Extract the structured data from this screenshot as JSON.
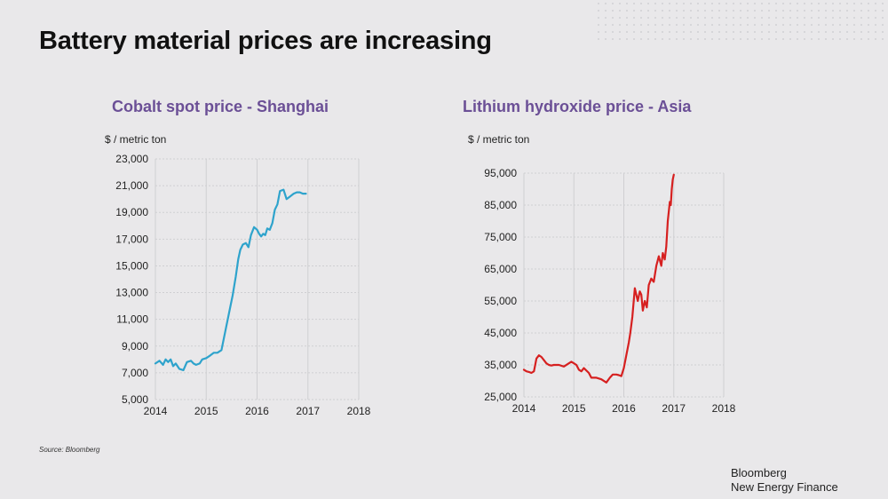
{
  "slide": {
    "title": "Battery material prices are increasing",
    "source": "Source: Bloomberg",
    "brand_line1": "Bloomberg",
    "brand_line2": "New Energy Finance"
  },
  "colors": {
    "cobalt": "#2ea3cc",
    "lithium": "#d62020",
    "title_purple": "#6b4f96"
  },
  "chart_data": [
    {
      "type": "line",
      "title": "Cobalt spot price - Shanghai",
      "ylabel": "$ / metric ton",
      "xlim": [
        2014,
        2018
      ],
      "ylim": [
        5000,
        23000
      ],
      "yticks": [
        5000,
        7000,
        9000,
        11000,
        13000,
        15000,
        17000,
        19000,
        21000,
        23000
      ],
      "xticks": [
        2014,
        2015,
        2016,
        2017,
        2018
      ],
      "grid": true,
      "color": "#2ea3cc",
      "x": [
        2014.0,
        2014.08,
        2014.15,
        2014.2,
        2014.25,
        2014.3,
        2014.35,
        2014.4,
        2014.47,
        2014.55,
        2014.62,
        2014.7,
        2014.75,
        2014.8,
        2014.87,
        2014.92,
        2015.0,
        2015.08,
        2015.15,
        2015.22,
        2015.3,
        2015.38,
        2015.45,
        2015.52,
        2015.58,
        2015.63,
        2015.67,
        2015.72,
        2015.78,
        2015.83,
        2015.88,
        2015.94,
        2016.0,
        2016.04,
        2016.08,
        2016.12,
        2016.16,
        2016.2,
        2016.25,
        2016.3,
        2016.35,
        2016.4,
        2016.45,
        2016.52,
        2016.58,
        2016.65,
        2016.72,
        2016.78,
        2016.84,
        2016.9,
        2016.96
      ],
      "y": [
        7700,
        7900,
        7600,
        8000,
        7800,
        8000,
        7500,
        7700,
        7300,
        7200,
        7800,
        7900,
        7700,
        7600,
        7700,
        8000,
        8100,
        8300,
        8500,
        8500,
        8700,
        10200,
        11500,
        12800,
        14200,
        15500,
        16200,
        16600,
        16700,
        16400,
        17300,
        17900,
        17700,
        17400,
        17200,
        17400,
        17300,
        17800,
        17700,
        18200,
        19200,
        19600,
        20600,
        20700,
        20000,
        20200,
        20400,
        20500,
        20500,
        20400,
        20400
      ]
    },
    {
      "type": "line",
      "title": "Lithium hydroxide price - Asia",
      "ylabel": "$ / metric ton",
      "xlim": [
        2014,
        2018
      ],
      "ylim": [
        25000,
        95000
      ],
      "yticks": [
        25000,
        35000,
        45000,
        55000,
        65000,
        75000,
        85000,
        95000
      ],
      "xticks": [
        2014,
        2015,
        2016,
        2017,
        2018
      ],
      "grid": true,
      "color": "#d62020",
      "x": [
        2014.0,
        2014.05,
        2014.1,
        2014.15,
        2014.2,
        2014.25,
        2014.3,
        2014.35,
        2014.4,
        2014.45,
        2014.5,
        2014.55,
        2014.6,
        2014.7,
        2014.8,
        2014.9,
        2014.95,
        2015.0,
        2015.05,
        2015.1,
        2015.15,
        2015.2,
        2015.3,
        2015.35,
        2015.45,
        2015.55,
        2015.65,
        2015.72,
        2015.78,
        2015.85,
        2015.9,
        2015.95,
        2016.0,
        2016.05,
        2016.1,
        2016.13,
        2016.17,
        2016.22,
        2016.28,
        2016.32,
        2016.35,
        2016.38,
        2016.42,
        2016.46,
        2016.5,
        2016.55,
        2016.6,
        2016.65,
        2016.7,
        2016.75,
        2016.78,
        2016.82,
        2016.85,
        2016.88,
        2016.92,
        2016.94,
        2016.96,
        2016.98,
        2017.0
      ],
      "y": [
        33500,
        33000,
        32800,
        32500,
        33000,
        37000,
        38000,
        37500,
        36500,
        35500,
        35000,
        34800,
        35000,
        35000,
        34500,
        35500,
        36000,
        35500,
        35000,
        33500,
        33000,
        34000,
        32500,
        31000,
        31000,
        30500,
        29500,
        31000,
        32000,
        32000,
        31800,
        31500,
        34000,
        38000,
        42000,
        45000,
        50000,
        59000,
        55000,
        58000,
        57000,
        52000,
        55000,
        53000,
        60000,
        62000,
        61000,
        66000,
        69000,
        66000,
        70000,
        68000,
        72000,
        80000,
        86000,
        85000,
        90000,
        93000,
        94500
      ]
    }
  ]
}
